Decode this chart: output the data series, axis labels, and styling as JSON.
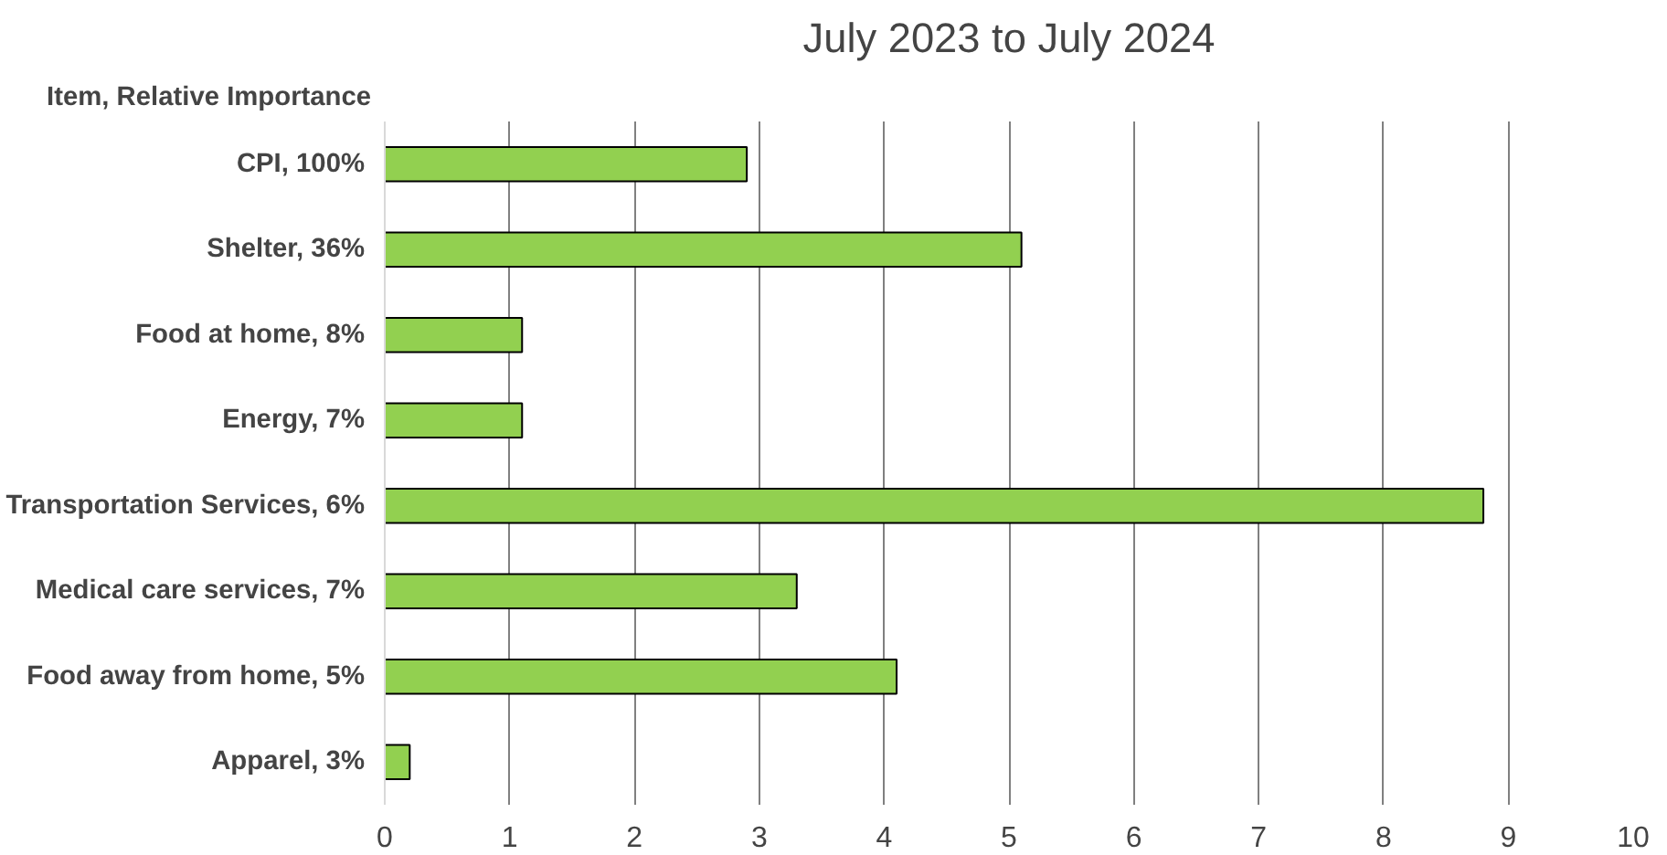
{
  "chart_data": {
    "type": "bar",
    "orientation": "horizontal",
    "title": "July 2023 to July 2024",
    "ylabel": "Item, Relative Importance",
    "categories": [
      "CPI, 100%",
      "Shelter, 36%",
      "Food at home, 8%",
      "Energy, 7%",
      "Transportation Services, 6%",
      "Medical care services, 7%",
      "Food away from home, 5%",
      "Apparel, 3%"
    ],
    "values": [
      2.9,
      5.1,
      1.1,
      1.1,
      8.8,
      3.3,
      4.1,
      0.2
    ],
    "colors": [
      "#92d050",
      "#92d050",
      "#92d050",
      "#92d050",
      "#92d050",
      "#92d050",
      "#92d050",
      "#92d050"
    ],
    "xlim": [
      0,
      10
    ],
    "xticks": [
      0,
      1,
      2,
      3,
      4,
      5,
      6,
      7,
      8,
      9,
      10
    ],
    "grid": "x"
  }
}
